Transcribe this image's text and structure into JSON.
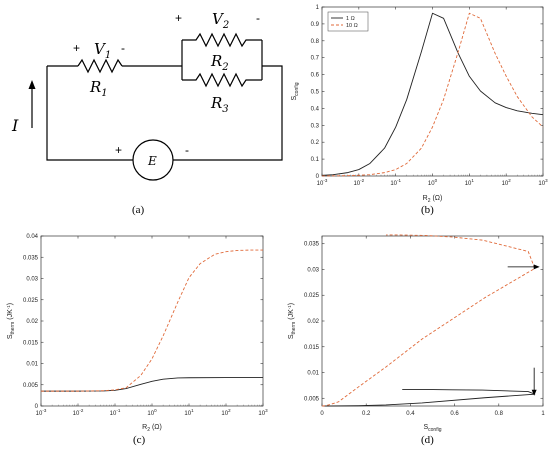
{
  "captions": {
    "a": "(a)",
    "b": "(b)",
    "c": "(c)",
    "d": "(d)"
  },
  "circuit": {
    "current_label": "I",
    "source_label": "E",
    "resistors": {
      "r1": "R",
      "r1_sub": "1",
      "r2": "R",
      "r2_sub": "2",
      "r3": "R",
      "r3_sub": "3"
    },
    "voltages": {
      "v1": "V",
      "v1_sub": "1",
      "v2": "V",
      "v2_sub": "2"
    },
    "plus": "+",
    "minus": "-"
  },
  "chart_data": [
    {
      "id": "b",
      "type": "line",
      "xlabel": {
        "main": "R",
        "sub": "2",
        "unit": " (Ω)"
      },
      "ylabel": {
        "main": "S",
        "sub": "config"
      },
      "xscale": "log",
      "xlim": [
        0.001,
        1000
      ],
      "ylim": [
        0,
        1
      ],
      "xticks": [
        "10",
        "10",
        "10",
        "10",
        "10",
        "10",
        "10"
      ],
      "xtick_exponents": [
        "-3",
        "-2",
        "-1",
        "0",
        "1",
        "2",
        "3"
      ],
      "yticks": [
        "0",
        "0.1",
        "0.2",
        "0.3",
        "0.4",
        "0.5",
        "0.6",
        "0.7",
        "0.8",
        "0.9",
        "1"
      ],
      "legend": {
        "position": "top-left",
        "entries": [
          "1 Ω",
          "10 Ω"
        ]
      },
      "series": [
        {
          "name": "1 Ω",
          "color": "#222222",
          "dash": "solid",
          "x": [
            0.001,
            0.002,
            0.005,
            0.01,
            0.02,
            0.05,
            0.1,
            0.2,
            0.5,
            1,
            2,
            5,
            10,
            20,
            50,
            100,
            200,
            500,
            1000
          ],
          "y": [
            0.004,
            0.008,
            0.02,
            0.038,
            0.074,
            0.165,
            0.289,
            0.453,
            0.736,
            0.963,
            0.933,
            0.725,
            0.59,
            0.503,
            0.433,
            0.405,
            0.386,
            0.371,
            0.363
          ]
        },
        {
          "name": "10 Ω",
          "color": "#e06a3a",
          "dash": "dashed",
          "x": [
            0.001,
            0.002,
            0.005,
            0.01,
            0.02,
            0.05,
            0.1,
            0.2,
            0.5,
            1,
            2,
            5,
            10,
            20,
            50,
            100,
            200,
            500,
            1000
          ],
          "y": [
            0.0004,
            0.0008,
            0.002,
            0.004,
            0.008,
            0.02,
            0.038,
            0.074,
            0.165,
            0.29,
            0.453,
            0.736,
            0.963,
            0.933,
            0.726,
            0.591,
            0.47,
            0.35,
            0.29
          ]
        }
      ]
    },
    {
      "id": "c",
      "type": "line",
      "xlabel": {
        "main": "R",
        "sub": "2",
        "unit": " (Ω)"
      },
      "ylabel": {
        "main": "S",
        "sub": "therm",
        "unit": " (JK",
        "unit_sup": "-1",
        "unit_end": ")"
      },
      "xscale": "log",
      "xlim": [
        0.001,
        1000
      ],
      "ylim": [
        0,
        0.04
      ],
      "xticks": [
        "10",
        "10",
        "10",
        "10",
        "10",
        "10",
        "10"
      ],
      "xtick_exponents": [
        "-3",
        "-2",
        "-1",
        "0",
        "1",
        "2",
        "3"
      ],
      "yticks": [
        "0",
        "0.005",
        "0.01",
        "0.015",
        "0.02",
        "0.025",
        "0.03",
        "0.035",
        "0.04"
      ],
      "series": [
        {
          "name": "",
          "color": "#222222",
          "dash": "solid",
          "x": [
            0.001,
            0.01,
            0.05,
            0.1,
            0.2,
            0.5,
            1,
            2,
            5,
            10,
            100,
            1000
          ],
          "y": [
            0.0035,
            0.0035,
            0.00355,
            0.0037,
            0.0041,
            0.0051,
            0.0058,
            0.0063,
            0.0066,
            0.00665,
            0.0067,
            0.0067
          ]
        },
        {
          "name": "",
          "color": "#e06a3a",
          "dash": "dashed",
          "x": [
            0.001,
            0.01,
            0.05,
            0.1,
            0.2,
            0.5,
            1,
            2,
            5,
            10,
            20,
            50,
            100,
            200,
            500,
            1000
          ],
          "y": [
            0.0035,
            0.0035,
            0.0036,
            0.0038,
            0.0043,
            0.0072,
            0.0111,
            0.0165,
            0.0245,
            0.0302,
            0.0335,
            0.0357,
            0.0363,
            0.0366,
            0.0367,
            0.0367
          ]
        }
      ]
    },
    {
      "id": "d",
      "type": "line",
      "xlabel": {
        "main": "S",
        "sub": "config"
      },
      "ylabel": {
        "main": "S",
        "sub": "therm",
        "unit": " (JK",
        "unit_sup": "-1",
        "unit_end": ")"
      },
      "xscale": "linear",
      "xlim": [
        0,
        1
      ],
      "ylim": [
        0.0035,
        0.0365
      ],
      "xticks": [
        "0",
        "0.2",
        "0.4",
        "0.6",
        "0.8",
        "1"
      ],
      "yticks": [
        "0.005",
        "0.01",
        "0.015",
        "0.02",
        "0.025",
        "0.03",
        "0.035"
      ],
      "series": [
        {
          "name": "",
          "color": "#222222",
          "dash": "solid",
          "x": [
            0.004,
            0.038,
            0.165,
            0.289,
            0.453,
            0.736,
            0.963,
            0.933,
            0.725,
            0.59,
            0.503,
            0.433,
            0.405,
            0.363
          ],
          "y": [
            0.0035,
            0.0035,
            0.00355,
            0.0037,
            0.0041,
            0.0051,
            0.0058,
            0.0063,
            0.0066,
            0.00665,
            0.0067,
            0.0067,
            0.0067,
            0.0067
          ]
        },
        {
          "name": "",
          "color": "#e06a3a",
          "dash": "dashed",
          "x": [
            0.0004,
            0.004,
            0.02,
            0.038,
            0.074,
            0.165,
            0.29,
            0.453,
            0.736,
            0.963,
            0.933,
            0.726,
            0.591,
            0.47,
            0.35,
            0.29
          ],
          "y": [
            0.0035,
            0.0035,
            0.0036,
            0.0038,
            0.0043,
            0.0072,
            0.0111,
            0.0165,
            0.0245,
            0.0302,
            0.0335,
            0.0357,
            0.0363,
            0.0366,
            0.0367,
            0.0367
          ]
        }
      ],
      "arrows": [
        {
          "points_to": [
            0.985,
            0.0305
          ],
          "direction": "right"
        },
        {
          "points_to": [
            0.96,
            0.0055
          ],
          "direction": "down"
        }
      ]
    }
  ]
}
